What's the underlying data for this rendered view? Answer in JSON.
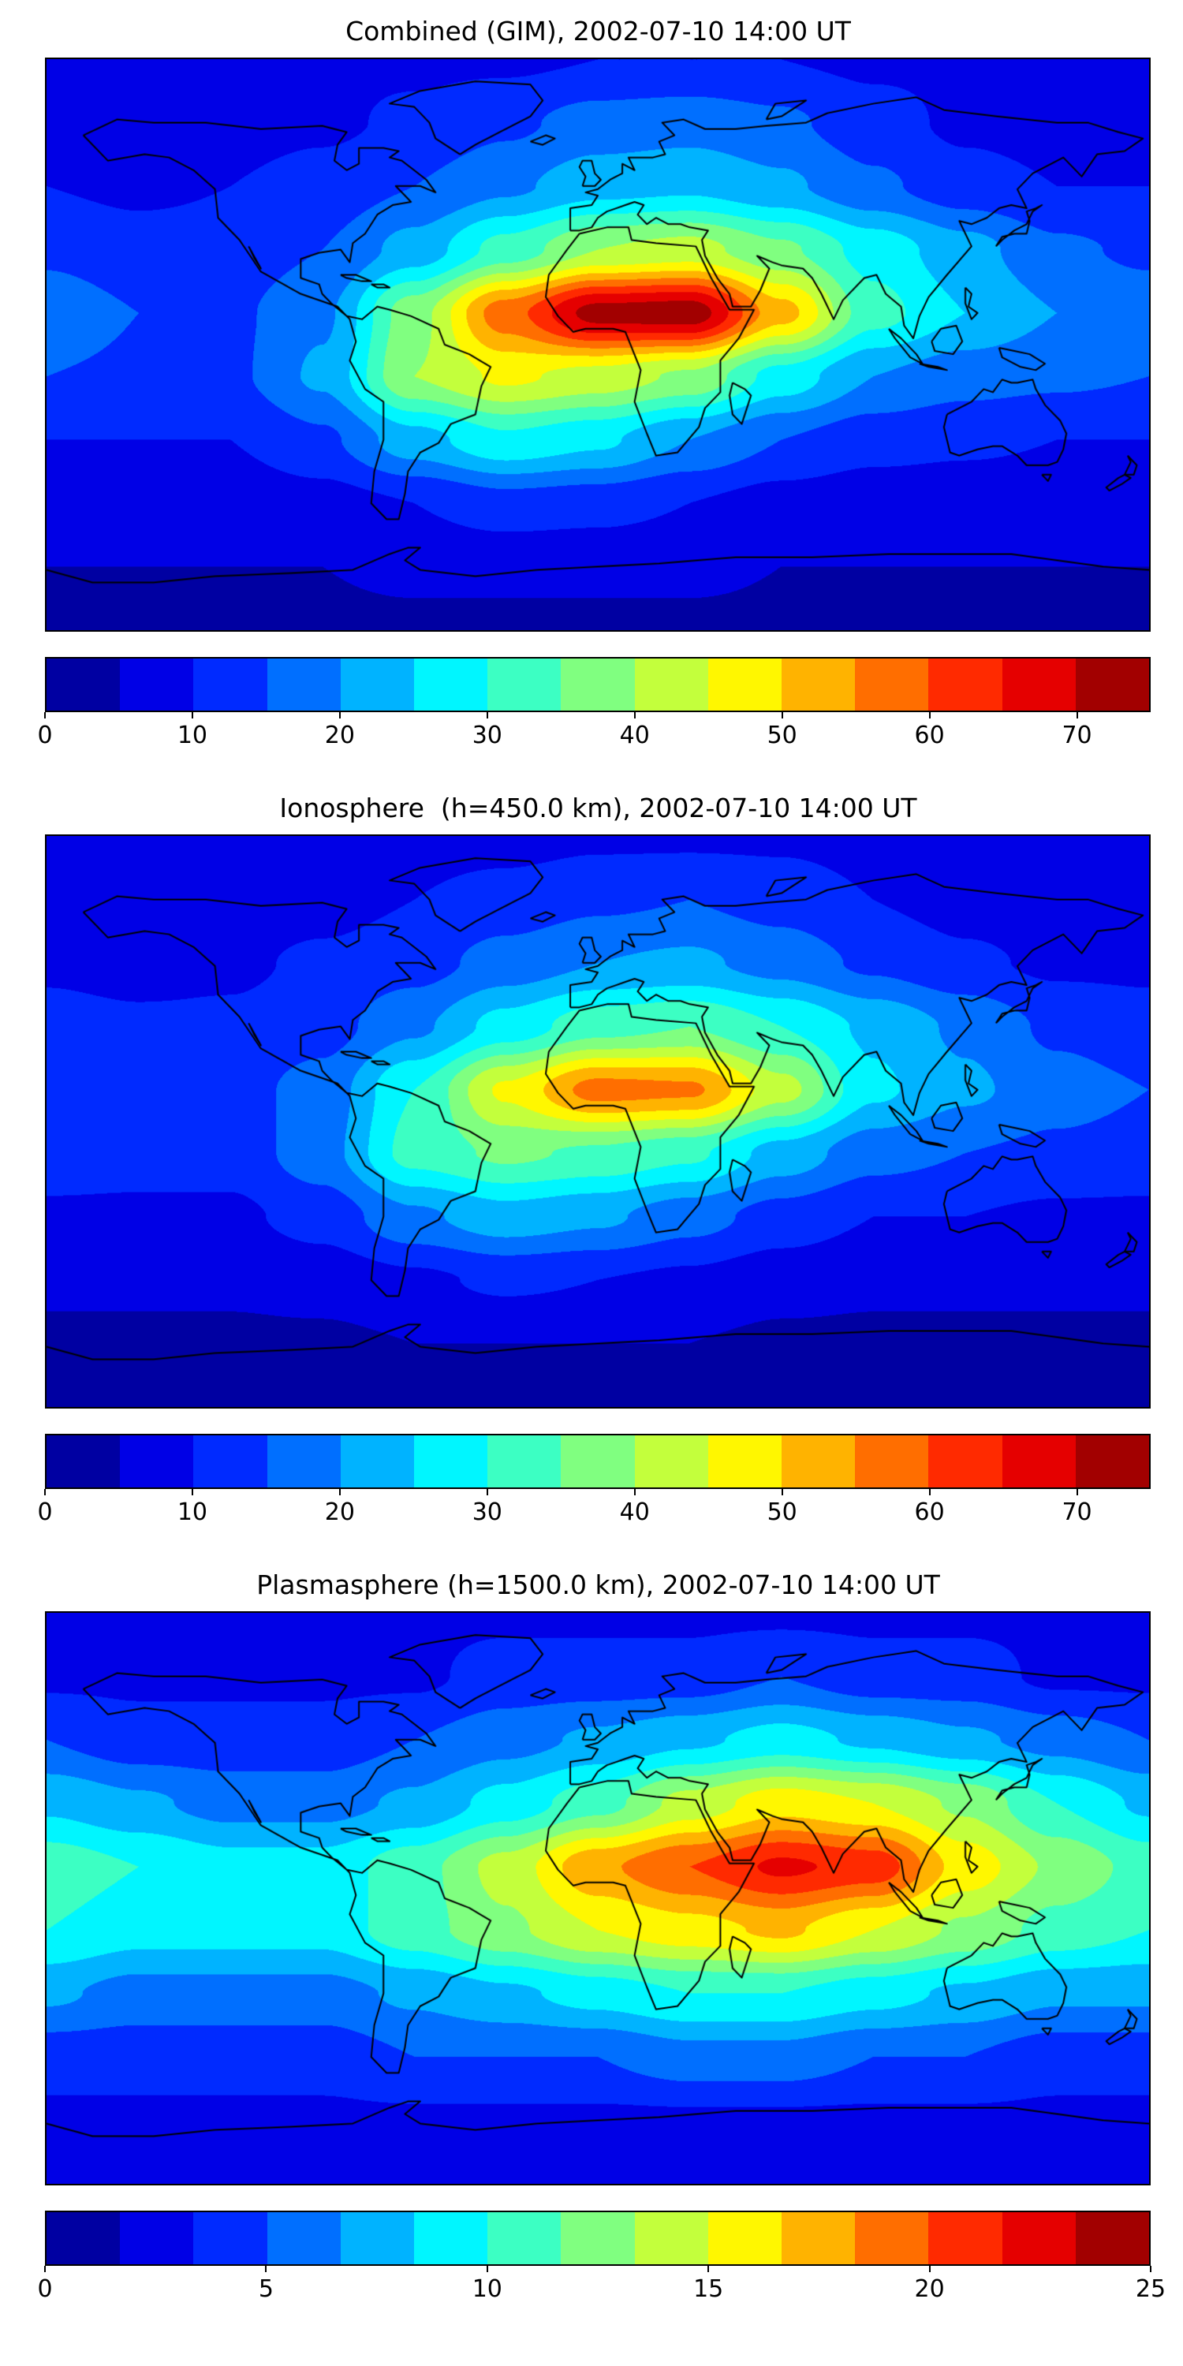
{
  "figure": {
    "background_color": "#ffffff",
    "coastline_color": "#000000",
    "colormap": "jet"
  },
  "chart_data": [
    {
      "type": "heatmap",
      "title": "Combined (GIM), 2002-07-10 14:00 UT",
      "xlabel": "",
      "ylabel": "",
      "x_range": [
        -180,
        180
      ],
      "y_range": [
        -90,
        90
      ],
      "lats": [
        90,
        70,
        50,
        30,
        10,
        -10,
        -30,
        -50,
        -70,
        -90
      ],
      "lons": [
        -180,
        -150,
        -120,
        -90,
        -60,
        -30,
        0,
        30,
        60,
        90,
        120,
        150,
        180
      ],
      "values": [
        [
          9,
          9,
          9,
          9,
          9,
          9,
          10,
          10,
          10,
          9,
          9,
          9,
          9
        ],
        [
          8,
          8,
          8,
          9,
          11,
          14,
          17,
          18,
          16,
          12,
          9,
          8,
          8
        ],
        [
          10,
          9,
          10,
          12,
          15,
          19,
          23,
          24,
          21,
          16,
          12,
          10,
          10
        ],
        [
          14,
          12,
          12,
          15,
          22,
          32,
          40,
          42,
          36,
          28,
          22,
          16,
          14
        ],
        [
          18,
          15,
          14,
          19,
          38,
          58,
          72,
          73,
          52,
          32,
          25,
          20,
          18
        ],
        [
          15,
          14,
          14,
          21,
          40,
          46,
          43,
          39,
          28,
          20,
          17,
          16,
          15
        ],
        [
          10,
          10,
          10,
          14,
          23,
          29,
          26,
          20,
          15,
          12,
          11,
          10,
          10
        ],
        [
          7,
          7,
          7,
          8,
          10,
          13,
          12,
          10,
          8,
          7,
          7,
          7,
          7
        ],
        [
          5,
          5,
          5,
          5,
          6,
          6,
          6,
          6,
          5,
          5,
          5,
          5,
          5
        ],
        [
          4,
          4,
          4,
          4,
          4,
          4,
          4,
          4,
          4,
          4,
          4,
          4,
          4
        ]
      ],
      "vmin": 0,
      "vmax": 75,
      "levels": 15,
      "colorbar_ticks": [
        0,
        10,
        20,
        30,
        40,
        50,
        60,
        70
      ],
      "legend": "none",
      "grid": false
    },
    {
      "type": "heatmap",
      "title": "Ionosphere  (h=450.0 km), 2002-07-10 14:00 UT",
      "xlabel": "",
      "ylabel": "",
      "x_range": [
        -180,
        180
      ],
      "y_range": [
        -90,
        90
      ],
      "lats": [
        90,
        70,
        50,
        30,
        10,
        -10,
        -30,
        -50,
        -70,
        -90
      ],
      "lons": [
        -180,
        -150,
        -120,
        -90,
        -60,
        -30,
        0,
        30,
        60,
        90,
        120,
        150,
        180
      ],
      "values": [
        [
          8,
          8,
          8,
          8,
          8,
          8,
          9,
          9,
          9,
          8,
          8,
          8,
          8
        ],
        [
          7,
          7,
          7,
          8,
          10,
          12,
          14,
          15,
          13,
          10,
          8,
          7,
          7
        ],
        [
          9,
          8,
          9,
          11,
          13,
          17,
          20,
          21,
          18,
          14,
          11,
          9,
          9
        ],
        [
          12,
          11,
          11,
          13,
          19,
          27,
          33,
          35,
          30,
          24,
          19,
          14,
          12
        ],
        [
          15,
          13,
          13,
          17,
          30,
          46,
          57,
          56,
          42,
          26,
          21,
          17,
          15
        ],
        [
          13,
          12,
          12,
          18,
          32,
          36,
          34,
          31,
          23,
          17,
          15,
          14,
          13
        ],
        [
          9,
          9,
          9,
          12,
          19,
          23,
          21,
          17,
          13,
          10,
          10,
          9,
          9
        ],
        [
          6,
          6,
          6,
          7,
          9,
          11,
          10,
          9,
          7,
          6,
          6,
          6,
          6
        ],
        [
          4,
          4,
          4,
          4,
          5,
          5,
          5,
          5,
          4,
          4,
          4,
          4,
          4
        ],
        [
          3,
          3,
          3,
          3,
          3,
          3,
          3,
          3,
          3,
          3,
          3,
          3,
          3
        ]
      ],
      "vmin": 0,
      "vmax": 75,
      "levels": 15,
      "colorbar_ticks": [
        0,
        10,
        20,
        30,
        40,
        50,
        60,
        70
      ],
      "legend": "none",
      "grid": false
    },
    {
      "type": "heatmap",
      "title": "Plasmasphere (h=1500.0 km), 2002-07-10 14:00 UT",
      "xlabel": "",
      "ylabel": "",
      "x_range": [
        -180,
        180
      ],
      "y_range": [
        -90,
        90
      ],
      "lats": [
        90,
        70,
        50,
        30,
        10,
        -10,
        -30,
        -50,
        -70,
        -90
      ],
      "lons": [
        -180,
        -150,
        -120,
        -90,
        -60,
        -30,
        0,
        30,
        60,
        90,
        120,
        150,
        180
      ],
      "values": [
        [
          3,
          3,
          3,
          3,
          3,
          3,
          3,
          3,
          3,
          3,
          3,
          3,
          3
        ],
        [
          3,
          3,
          3,
          3,
          3,
          4,
          4,
          4,
          5,
          4,
          4,
          3,
          3
        ],
        [
          5,
          4,
          4,
          4,
          5,
          6,
          7,
          8,
          9,
          8,
          7,
          6,
          5
        ],
        [
          8,
          7,
          6,
          6,
          7,
          9,
          11,
          14,
          16,
          15,
          13,
          10,
          8
        ],
        [
          11,
          10,
          9,
          9,
          11,
          14,
          18,
          20,
          22,
          21,
          16,
          13,
          11
        ],
        [
          10,
          9,
          9,
          9,
          11,
          13,
          15,
          16,
          17,
          15,
          13,
          11,
          10
        ],
        [
          7,
          6,
          6,
          6,
          7,
          8,
          9,
          10,
          10,
          9,
          8,
          7,
          7
        ],
        [
          4,
          4,
          4,
          4,
          5,
          5,
          5,
          6,
          6,
          5,
          5,
          4,
          4
        ],
        [
          3,
          3,
          3,
          3,
          3,
          3,
          3,
          3,
          3,
          3,
          3,
          3,
          3
        ],
        [
          2,
          2,
          2,
          2,
          2,
          2,
          2,
          2,
          2,
          2,
          2,
          2,
          2
        ]
      ],
      "vmin": 0,
      "vmax": 25,
      "levels": 15,
      "colorbar_ticks": [
        0,
        5,
        10,
        15,
        20,
        25
      ],
      "legend": "none",
      "grid": false
    }
  ]
}
